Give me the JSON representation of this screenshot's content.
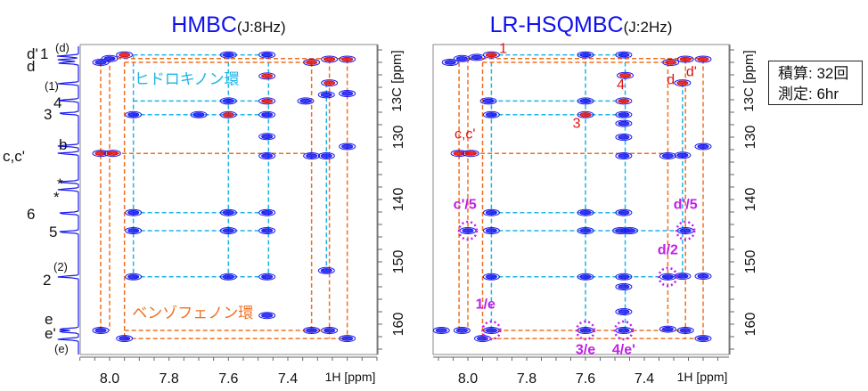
{
  "info_box": {
    "line1": "積算: 32回",
    "line2": "測定: 6hr"
  },
  "colors": {
    "title": "#1010ee",
    "positive": "#1a1aee",
    "negative": "#e01010",
    "hydroquinone_lines": "#1eb4e6",
    "benzophenone_lines": "#f07020",
    "red_label": "#e01010",
    "magenta_label": "#c020e8"
  },
  "chart_data": [
    {
      "type": "heatmap",
      "subtype": "2D NMR contour",
      "title": "HMBC",
      "title_suffix": "(J:8Hz)",
      "xlabel": "1H [ppm]",
      "ylabel": "13C [ppm]",
      "xlim": [
        8.1,
        7.1
      ],
      "ylim": [
        115,
        165
      ],
      "xticks": [
        "8.0",
        "7.8",
        "7.6",
        "7.4"
      ],
      "yticks": [
        "130",
        "140",
        "150",
        "160"
      ],
      "ring_labels": [
        {
          "text": "ヒドロキノン環",
          "color": "hydroquinone_lines",
          "h": 7.74,
          "c": 121.5
        },
        {
          "text": "ベンゾフェノン環",
          "color": "benzophenone_lines",
          "h": 7.72,
          "c": 159
        }
      ],
      "projection_labels": [
        {
          "text": "d'",
          "c": 117.3
        },
        {
          "text": "1",
          "c": 117.3
        },
        {
          "text": "(d)",
          "c": 116.6
        },
        {
          "text": "d",
          "c": 118.3
        },
        {
          "text": "(1)",
          "c": 121.5
        },
        {
          "text": "4",
          "c": 124.2
        },
        {
          "text": "3",
          "c": 126.4
        },
        {
          "text": "b",
          "c": 131.6
        },
        {
          "text": "c,c'",
          "c": 132.8
        },
        {
          "text": "*",
          "c": 137.3
        },
        {
          "text": "*",
          "c": 138.6
        },
        {
          "text": "6",
          "c": 142.3
        },
        {
          "text": "5",
          "c": 145.3
        },
        {
          "text": "2",
          "c": 152.6
        },
        {
          "text": "(2)",
          "c": 151.2
        },
        {
          "text": "e",
          "c": 160.2
        },
        {
          "text": "e'",
          "c": 161.3
        },
        {
          "text": "(e)",
          "c": 162.8
        }
      ],
      "projection_peaks": [
        117.0,
        117.6,
        118.1,
        121.4,
        124.1,
        126.2,
        131.4,
        132.6,
        137.2,
        138.4,
        142.2,
        145.2,
        152.4,
        160.8,
        161.2,
        162.4
      ],
      "peaks": [
        [
          8.03,
          118.0,
          "b"
        ],
        [
          8.0,
          117.4,
          "b"
        ],
        [
          7.95,
          116.8,
          "r"
        ],
        [
          7.6,
          116.8,
          "b"
        ],
        [
          7.47,
          116.8,
          "b"
        ],
        [
          7.32,
          118.0,
          "r"
        ],
        [
          7.26,
          117.5,
          "r"
        ],
        [
          7.2,
          117.5,
          "r"
        ],
        [
          7.26,
          121.3,
          "r"
        ],
        [
          7.47,
          120.2,
          "r"
        ],
        [
          7.6,
          124.2,
          "b"
        ],
        [
          7.47,
          124.2,
          "r"
        ],
        [
          7.34,
          124.2,
          "b"
        ],
        [
          7.27,
          123.2,
          "b"
        ],
        [
          7.2,
          123.0,
          "b"
        ],
        [
          7.92,
          126.4,
          "b"
        ],
        [
          7.7,
          126.4,
          "b"
        ],
        [
          7.6,
          126.4,
          "r"
        ],
        [
          7.47,
          126.4,
          "b"
        ],
        [
          7.47,
          129.9,
          "b"
        ],
        [
          7.2,
          131.5,
          "b"
        ],
        [
          8.03,
          132.6,
          "r"
        ],
        [
          7.99,
          132.6,
          "r"
        ],
        [
          7.47,
          133.0,
          "b"
        ],
        [
          7.32,
          133.0,
          "b"
        ],
        [
          7.27,
          133.0,
          "b"
        ],
        [
          7.92,
          142.1,
          "b"
        ],
        [
          7.6,
          142.1,
          "b"
        ],
        [
          7.47,
          142.1,
          "b"
        ],
        [
          7.92,
          145.0,
          "b"
        ],
        [
          7.6,
          145.0,
          "b"
        ],
        [
          7.47,
          145.0,
          "b"
        ],
        [
          7.92,
          152.4,
          "b"
        ],
        [
          7.6,
          152.4,
          "b"
        ],
        [
          7.47,
          152.4,
          "b"
        ],
        [
          7.27,
          151.4,
          "b"
        ],
        [
          7.47,
          158.6,
          "b"
        ],
        [
          8.03,
          161.0,
          "b"
        ],
        [
          7.95,
          162.3,
          "b"
        ],
        [
          7.32,
          161.0,
          "b"
        ],
        [
          7.26,
          161.0,
          "b"
        ],
        [
          7.2,
          162.3,
          "b"
        ]
      ],
      "vlines": [
        {
          "h": 8.03,
          "c": [
            118,
            161
          ],
          "k": "o"
        },
        {
          "h": 8.0,
          "c": [
            117.4,
            161
          ],
          "k": "o"
        },
        {
          "h": 7.95,
          "c": [
            118,
            162.3
          ],
          "k": "o"
        },
        {
          "h": 7.32,
          "c": [
            118,
            161
          ],
          "k": "o"
        },
        {
          "h": 7.26,
          "c": [
            117.5,
            162.3
          ],
          "k": "o"
        },
        {
          "h": 7.2,
          "c": [
            117.5,
            162.3
          ],
          "k": "o"
        },
        {
          "h": 7.92,
          "c": [
            116.8,
            152.4
          ],
          "k": "c"
        },
        {
          "h": 7.6,
          "c": [
            116.8,
            152.4
          ],
          "k": "c"
        },
        {
          "h": 7.465,
          "c": [
            116.8,
            152.4
          ],
          "k": "c"
        },
        {
          "h": 7.27,
          "c": [
            121.3,
            151.4
          ],
          "k": "c"
        }
      ],
      "hlines": [
        {
          "c": 116.8,
          "h": [
            7.92,
            7.47
          ],
          "k": "c"
        },
        {
          "c": 124.2,
          "h": [
            7.92,
            7.47
          ],
          "k": "c"
        },
        {
          "c": 126.4,
          "h": [
            7.92,
            7.47
          ],
          "k": "c"
        },
        {
          "c": 142.1,
          "h": [
            7.92,
            7.47
          ],
          "k": "c"
        },
        {
          "c": 145.0,
          "h": [
            7.92,
            7.47
          ],
          "k": "c"
        },
        {
          "c": 152.4,
          "h": [
            7.92,
            7.47
          ],
          "k": "c"
        },
        {
          "c": 117.4,
          "h": [
            8.0,
            7.2
          ],
          "k": "o"
        },
        {
          "c": 118.0,
          "h": [
            7.95,
            7.32
          ],
          "k": "o"
        },
        {
          "c": 132.6,
          "h": [
            8.03,
            7.32
          ],
          "k": "o"
        },
        {
          "c": 161.0,
          "h": [
            7.95,
            7.26
          ],
          "k": "o"
        },
        {
          "c": 162.3,
          "h": [
            7.95,
            7.2
          ],
          "k": "o"
        }
      ]
    },
    {
      "type": "heatmap",
      "subtype": "2D NMR contour",
      "title": "LR-HSQMBC",
      "title_suffix": "(J:2Hz)",
      "xlabel": "1H [ppm]",
      "ylabel": "13C [ppm]",
      "xlim": [
        8.12,
        7.11
      ],
      "ylim": [
        115,
        165
      ],
      "xticks": [
        "8.0",
        "7.8",
        "7.6",
        "7.4"
      ],
      "yticks": [
        "130",
        "140",
        "150",
        "160"
      ],
      "annotations": [
        {
          "text": "1",
          "h": 7.88,
          "c": 116.5,
          "color": "red_label"
        },
        {
          "text": "d",
          "h": 7.31,
          "c": 121.5,
          "color": "red_label"
        },
        {
          "text": "d'",
          "h": 7.24,
          "c": 120.2,
          "color": "red_label"
        },
        {
          "text": "4",
          "h": 7.48,
          "c": 122.3,
          "color": "red_label"
        },
        {
          "text": "3",
          "h": 7.63,
          "c": 128.5,
          "color": "red_label"
        },
        {
          "text": "c,c'",
          "h": 8.01,
          "c": 130.2,
          "color": "red_label"
        },
        {
          "text": "c'/5",
          "h": 8.01,
          "c": 141.5,
          "color": "magenta_label",
          "circle": [
            8.0,
            145.0
          ]
        },
        {
          "text": "d'/5",
          "h": 7.26,
          "c": 141.5,
          "color": "magenta_label",
          "circle": [
            7.26,
            145.0
          ]
        },
        {
          "text": "d/2",
          "h": 7.32,
          "c": 148.8,
          "color": "magenta_label",
          "circle": [
            7.32,
            152.4
          ]
        },
        {
          "text": "1/e",
          "h": 7.94,
          "c": 157.5,
          "color": "magenta_label",
          "circle": [
            7.92,
            161.0
          ]
        },
        {
          "text": "3/e",
          "h": 7.6,
          "c": 164.8,
          "color": "magenta_label",
          "circle": [
            7.6,
            161.0
          ]
        },
        {
          "text": "4/e'",
          "h": 7.47,
          "c": 164.8,
          "color": "magenta_label",
          "circle": [
            7.47,
            161.0
          ]
        }
      ],
      "peaks": [
        [
          8.06,
          118.0,
          "b"
        ],
        [
          8.02,
          117.4,
          "b"
        ],
        [
          7.97,
          117.2,
          "b"
        ],
        [
          7.92,
          116.8,
          "r"
        ],
        [
          7.6,
          116.8,
          "b"
        ],
        [
          7.47,
          116.8,
          "b"
        ],
        [
          7.31,
          118.0,
          "r"
        ],
        [
          7.26,
          117.5,
          "r"
        ],
        [
          7.2,
          117.5,
          "r"
        ],
        [
          7.465,
          120.1,
          "r"
        ],
        [
          7.27,
          121.3,
          "r"
        ],
        [
          7.93,
          124.2,
          "b"
        ],
        [
          7.6,
          124.2,
          "b"
        ],
        [
          7.47,
          124.2,
          "r"
        ],
        [
          7.92,
          126.4,
          "b"
        ],
        [
          7.6,
          126.4,
          "r"
        ],
        [
          7.47,
          126.4,
          "b"
        ],
        [
          7.47,
          127.8,
          "b"
        ],
        [
          7.47,
          130.0,
          "b"
        ],
        [
          7.2,
          131.5,
          "b"
        ],
        [
          8.03,
          132.6,
          "r"
        ],
        [
          7.99,
          132.6,
          "r"
        ],
        [
          7.47,
          133.0,
          "b"
        ],
        [
          7.32,
          133.0,
          "b"
        ],
        [
          7.27,
          132.9,
          "b"
        ],
        [
          7.92,
          142.1,
          "b"
        ],
        [
          7.6,
          142.1,
          "b"
        ],
        [
          7.47,
          142.1,
          "b"
        ],
        [
          8.0,
          145.0,
          "b"
        ],
        [
          7.92,
          145.0,
          "b"
        ],
        [
          7.6,
          145.0,
          "b"
        ],
        [
          7.48,
          145.0,
          "b"
        ],
        [
          7.45,
          145.0,
          "b"
        ],
        [
          7.26,
          145.0,
          "b"
        ],
        [
          7.92,
          152.4,
          "b"
        ],
        [
          7.6,
          152.4,
          "b"
        ],
        [
          7.47,
          152.4,
          "b"
        ],
        [
          7.47,
          154.0,
          "b"
        ],
        [
          7.32,
          152.4,
          "b"
        ],
        [
          7.27,
          152.3,
          "b"
        ],
        [
          7.2,
          152.3,
          "b"
        ],
        [
          7.47,
          158.0,
          "b"
        ],
        [
          8.09,
          161.0,
          "b"
        ],
        [
          8.02,
          161.0,
          "b"
        ],
        [
          7.95,
          162.3,
          "b"
        ],
        [
          7.92,
          161.0,
          "b"
        ],
        [
          7.6,
          161.0,
          "b"
        ],
        [
          7.47,
          161.0,
          "b"
        ],
        [
          7.32,
          160.8,
          "b"
        ],
        [
          7.26,
          161.0,
          "b"
        ],
        [
          7.2,
          162.3,
          "b"
        ]
      ],
      "vlines": [
        {
          "h": 8.03,
          "c": [
            118,
            161
          ],
          "k": "o"
        },
        {
          "h": 8.0,
          "c": [
            117.4,
            161
          ],
          "k": "o"
        },
        {
          "h": 7.95,
          "c": [
            118,
            162.3
          ],
          "k": "o"
        },
        {
          "h": 7.32,
          "c": [
            118,
            161
          ],
          "k": "o"
        },
        {
          "h": 7.26,
          "c": [
            117.5,
            162.3
          ],
          "k": "o"
        },
        {
          "h": 7.2,
          "c": [
            117.5,
            162.3
          ],
          "k": "o"
        },
        {
          "h": 7.92,
          "c": [
            116.8,
            161
          ],
          "k": "c"
        },
        {
          "h": 7.6,
          "c": [
            116.8,
            161
          ],
          "k": "c"
        },
        {
          "h": 7.465,
          "c": [
            116.8,
            161
          ],
          "k": "c"
        },
        {
          "h": 7.27,
          "c": [
            121.3,
            152.3
          ],
          "k": "c"
        }
      ],
      "hlines": [
        {
          "c": 116.8,
          "h": [
            7.92,
            7.47
          ],
          "k": "c"
        },
        {
          "c": 124.2,
          "h": [
            7.92,
            7.47
          ],
          "k": "c"
        },
        {
          "c": 126.4,
          "h": [
            7.92,
            7.47
          ],
          "k": "c"
        },
        {
          "c": 142.1,
          "h": [
            7.92,
            7.47
          ],
          "k": "c"
        },
        {
          "c": 145.0,
          "h": [
            7.92,
            7.26
          ],
          "k": "c"
        },
        {
          "c": 152.4,
          "h": [
            7.92,
            7.27
          ],
          "k": "c"
        },
        {
          "c": 117.4,
          "h": [
            8.0,
            7.2
          ],
          "k": "o"
        },
        {
          "c": 118.0,
          "h": [
            7.95,
            7.32
          ],
          "k": "o"
        },
        {
          "c": 132.6,
          "h": [
            8.03,
            7.32
          ],
          "k": "o"
        },
        {
          "c": 161.0,
          "h": [
            7.95,
            7.26
          ],
          "k": "o"
        },
        {
          "c": 162.3,
          "h": [
            7.95,
            7.2
          ],
          "k": "o"
        }
      ]
    }
  ]
}
